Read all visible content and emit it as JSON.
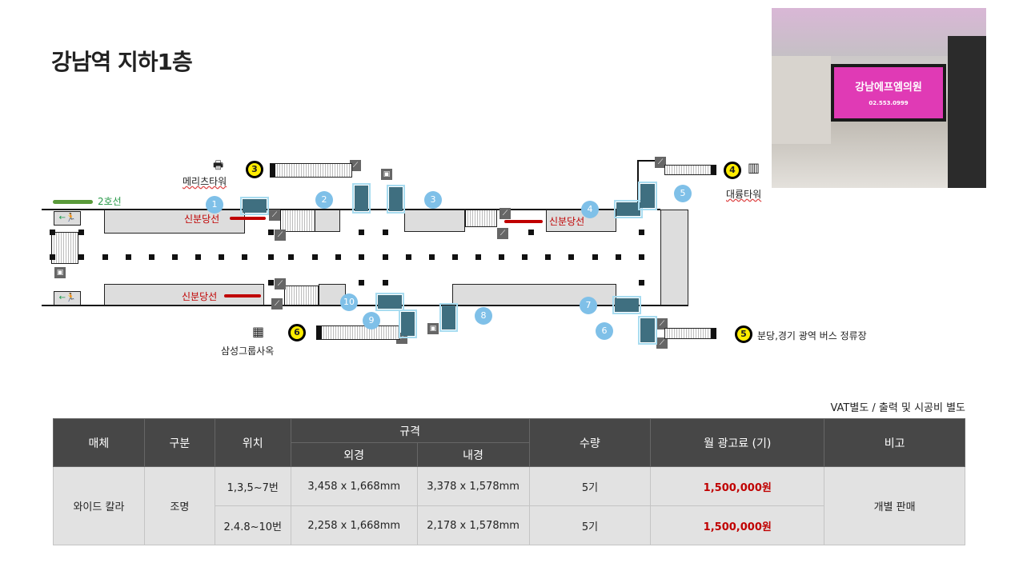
{
  "title": "강남역 지하1층",
  "photo": {
    "sign": "강남에프엠의원",
    "phone": "02.553.0999"
  },
  "map": {
    "line2_label": "2호선",
    "sinbundang_label": "신분당선",
    "buildings": {
      "meritz": "메리츠타워",
      "daeryung": "대륭타워",
      "samsung": "삼성그룹사옥",
      "bus": "분당,경기 광역 버스 정류장"
    },
    "exits": [
      "3",
      "4",
      "6",
      "5"
    ],
    "markers": [
      "1",
      "2",
      "3",
      "4",
      "5",
      "6",
      "7",
      "8",
      "9",
      "10"
    ],
    "colors": {
      "marker": "#7fc0e8",
      "ad_panel": "#3f6f80",
      "exit": "#ffec00",
      "sinbundang": "#c00000",
      "line2": "#5a9a3a"
    }
  },
  "note": "VAT별도 / 출력 및 시공비 별도",
  "table": {
    "headers": {
      "media": "매체",
      "type": "구분",
      "location": "위치",
      "spec": "규격",
      "outer": "외경",
      "inner": "내경",
      "qty": "수량",
      "fee": "월 광고료 (기)",
      "remark": "비고"
    },
    "media": "와이드 칼라",
    "type": "조명",
    "remark": "개별 판매",
    "rows": [
      {
        "location": "1,3,5~7번",
        "outer": "3,458 x 1,668mm",
        "inner": "3,378 x 1,578mm",
        "qty": "5기",
        "fee": "1,500,000원"
      },
      {
        "location": "2.4.8~10번",
        "outer": "2,258 x 1,668mm",
        "inner": "2,178 x 1,578mm",
        "qty": "5기",
        "fee": "1,500,000원"
      }
    ]
  }
}
